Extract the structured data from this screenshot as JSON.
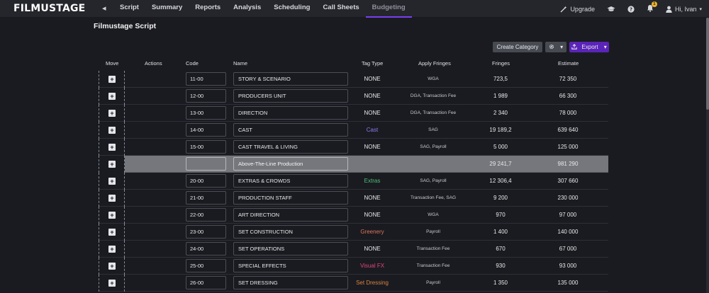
{
  "app": {
    "logo": "FILMUSTAGE"
  },
  "nav": {
    "back": "◂",
    "items": [
      "Script",
      "Summary",
      "Reports",
      "Analysis",
      "Scheduling",
      "Call Sheets",
      "Budgeting"
    ],
    "upgrade": "Upgrade",
    "notifications_count": "1",
    "user_greeting": "Hi, Ivan"
  },
  "page": {
    "title": "Filmustage Script"
  },
  "toolbar": {
    "create_category": "Create Category",
    "settings_caret": "▾",
    "export": "Export",
    "export_caret": "▾"
  },
  "table": {
    "headers": {
      "move": "Move",
      "actions": "Actions",
      "code": "Code",
      "name": "Name",
      "tag_type": "Tag Type",
      "apply_fringes": "Apply Fringes",
      "fringes": "Fringes",
      "estimate": "Estimate"
    },
    "rows": [
      {
        "code": "11-00",
        "name": "STORY & SCENARIO",
        "tag": "NONE",
        "tag_color": "#e8e8ea",
        "apply": "WGA",
        "fringes": "723,5",
        "estimate": "72 350"
      },
      {
        "code": "12-00",
        "name": "PRODUCERS UNIT",
        "tag": "NONE",
        "tag_color": "#e8e8ea",
        "apply": "DGA, Transaction Fee",
        "fringes": "1 989",
        "estimate": "66 300"
      },
      {
        "code": "13-00",
        "name": "DIRECTION",
        "tag": "NONE",
        "tag_color": "#e8e8ea",
        "apply": "DGA, Transaction Fee",
        "fringes": "2 340",
        "estimate": "78 000"
      },
      {
        "code": "14-00",
        "name": "CAST",
        "tag": "Cast",
        "tag_color": "#8b7cf0",
        "apply": "SAG",
        "fringes": "19 189,2",
        "estimate": "639 640"
      },
      {
        "code": "15-00",
        "name": "CAST TRAVEL & LIVING",
        "tag": "NONE",
        "tag_color": "#e8e8ea",
        "apply": "SAG, Payroll",
        "fringes": "5 000",
        "estimate": "125 000"
      },
      {
        "total": true,
        "code": "",
        "name": "Above-The-Line Production",
        "tag": "",
        "tag_color": "#e8e8ea",
        "apply": "",
        "fringes": "29 241,7",
        "estimate": "981 290"
      },
      {
        "code": "20-00",
        "name": "EXTRAS & CROWDS",
        "tag": "Extras",
        "tag_color": "#4fbf7a",
        "apply": "SAG, Payroll",
        "fringes": "12 306,4",
        "estimate": "307 660"
      },
      {
        "code": "21-00",
        "name": "PRODUCTION STAFF",
        "tag": "NONE",
        "tag_color": "#e8e8ea",
        "apply": "Transaction Fee, SAG",
        "fringes": "9 200",
        "estimate": "230 000"
      },
      {
        "code": "22-00",
        "name": "ART DIRECTION",
        "tag": "NONE",
        "tag_color": "#e8e8ea",
        "apply": "WGA",
        "fringes": "970",
        "estimate": "97 000"
      },
      {
        "code": "23-00",
        "name": "SET CONSTRUCTION",
        "tag": "Greenery",
        "tag_color": "#d9745a",
        "apply": "Payroll",
        "fringes": "1 400",
        "estimate": "140 000"
      },
      {
        "code": "24-00",
        "name": "SET OPERATIONS",
        "tag": "NONE",
        "tag_color": "#e8e8ea",
        "apply": "Transaction Fee",
        "fringes": "670",
        "estimate": "67 000"
      },
      {
        "code": "25-00",
        "name": "SPECIAL EFFECTS",
        "tag": "Visual FX",
        "tag_color": "#e0457a",
        "apply": "Transaction Fee",
        "fringes": "930",
        "estimate": "93 000"
      },
      {
        "code": "26-00",
        "name": "SET DRESSING",
        "tag": "Set Dressing",
        "tag_color": "#d8843f",
        "apply": "Payroll",
        "fringes": "1 350",
        "estimate": "135 000"
      }
    ]
  }
}
